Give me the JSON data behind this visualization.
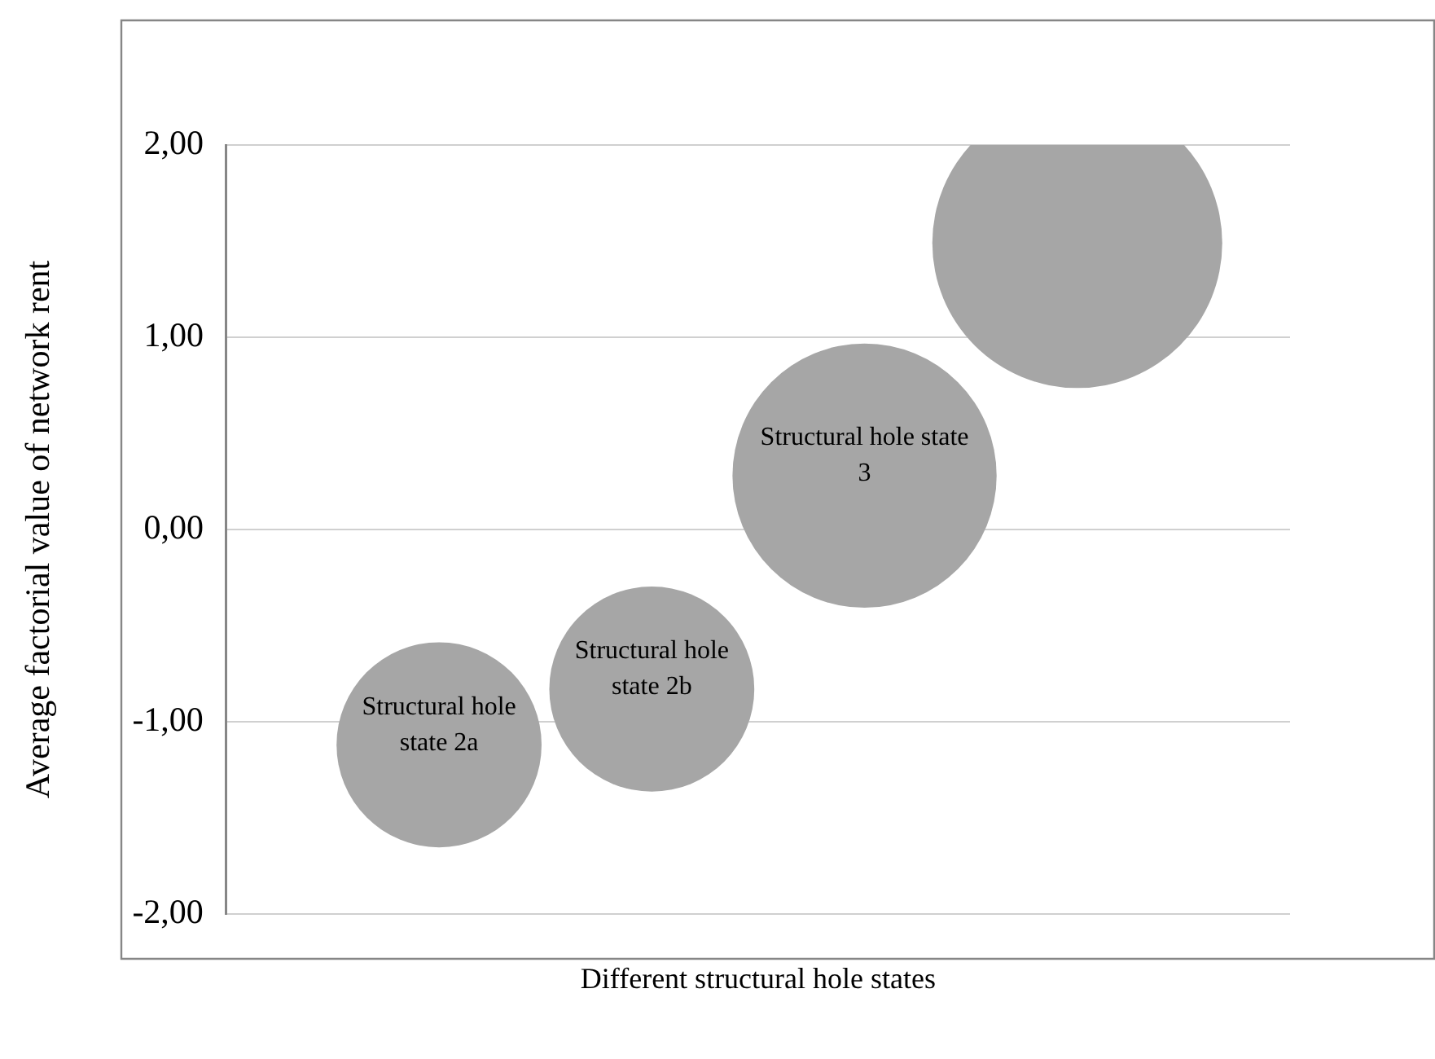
{
  "chart_data": {
    "type": "bubble",
    "xlabel": "Different structural hole states",
    "ylabel": "Average factorial value of network rent",
    "categories": [
      null,
      null,
      null,
      null
    ],
    "series": [
      {
        "name": "Structural hole state 2a",
        "color": "#a6a6a6",
        "values": [
          -1.12,
          null,
          null,
          null
        ],
        "sizes": [
          0.5,
          null,
          null,
          null
        ]
      },
      {
        "name": "Structural hole state 2b",
        "color": "#a6a6a6",
        "values": [
          null,
          -0.83,
          null,
          null
        ],
        "sizes": [
          null,
          0.5,
          null,
          null
        ]
      },
      {
        "name": "Structural hole state 3",
        "color": "#a6a6a6",
        "values": [
          null,
          null,
          0.28,
          null
        ],
        "sizes": [
          null,
          null,
          0.83,
          null
        ]
      },
      {
        "color": "#a6a6a6",
        "values": [
          null,
          null,
          null,
          1.49
        ],
        "sizes": [
          null,
          null,
          null,
          1
        ]
      }
    ],
    "ylim": [
      -2,
      2
    ],
    "yticks": [
      {
        "value": -2,
        "label": "-2,00"
      },
      {
        "value": -1,
        "label": "-1,00"
      },
      {
        "value": 0,
        "label": "0,00"
      },
      {
        "value": 1,
        "label": "1,00"
      },
      {
        "value": 2,
        "label": "2,00"
      }
    ],
    "grid": "y",
    "legend": false
  }
}
